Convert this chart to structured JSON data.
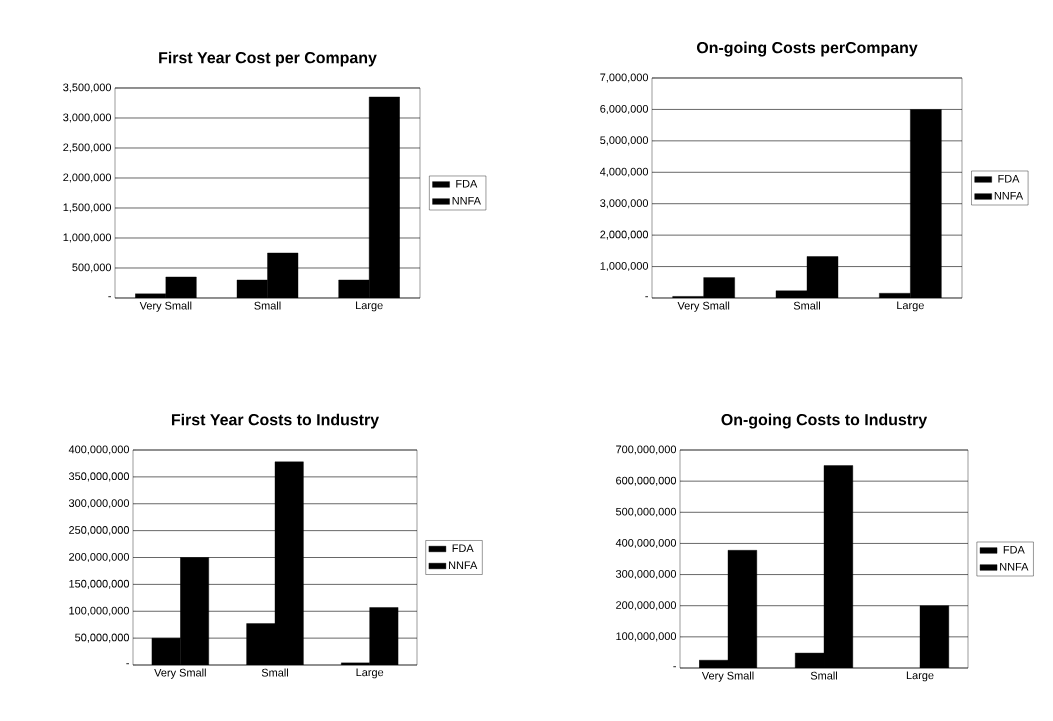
{
  "chart_data": [
    {
      "type": "bar",
      "title": "First Year Cost per Company",
      "categories": [
        "Very Small",
        "Small",
        "Large"
      ],
      "series": [
        {
          "name": "FDA",
          "color": "#000000",
          "values": [
            70000,
            300000,
            300000
          ]
        },
        {
          "name": "NNFA",
          "color": "#000000",
          "values": [
            350000,
            750000,
            3350000
          ]
        }
      ],
      "ylim": [
        0,
        3500000
      ],
      "yticks": [
        {
          "value": 0,
          "label": "-"
        },
        {
          "value": 500000,
          "label": "500,000"
        },
        {
          "value": 1000000,
          "label": "1,000,000"
        },
        {
          "value": 1500000,
          "label": "1,500,000"
        },
        {
          "value": 2000000,
          "label": "2,000,000"
        },
        {
          "value": 2500000,
          "label": "2,500,000"
        },
        {
          "value": 3000000,
          "label": "3,000,000"
        },
        {
          "value": 3500000,
          "label": "3,500,000"
        }
      ],
      "grid": "y",
      "legend": "right"
    },
    {
      "type": "bar",
      "title": "On-going Costs perCompany",
      "categories": [
        "Very Small",
        "Small",
        "Large"
      ],
      "series": [
        {
          "name": "FDA",
          "color": "#000000",
          "values": [
            50000,
            230000,
            150000
          ]
        },
        {
          "name": "NNFA",
          "color": "#000000",
          "values": [
            650000,
            1320000,
            6000000
          ]
        }
      ],
      "ylim": [
        0,
        7000000
      ],
      "yticks": [
        {
          "value": 0,
          "label": "-"
        },
        {
          "value": 1000000,
          "label": "1,000,000"
        },
        {
          "value": 2000000,
          "label": "2,000,000"
        },
        {
          "value": 3000000,
          "label": "3,000,000"
        },
        {
          "value": 4000000,
          "label": "4,000,000"
        },
        {
          "value": 5000000,
          "label": "5,000,000"
        },
        {
          "value": 6000000,
          "label": "6,000,000"
        },
        {
          "value": 7000000,
          "label": "7,000,000"
        }
      ],
      "grid": "y",
      "legend": "right"
    },
    {
      "type": "bar",
      "title": "First Year Costs to Industry",
      "categories": [
        "Very Small",
        "Small",
        "Large"
      ],
      "series": [
        {
          "name": "FDA",
          "color": "#000000",
          "values": [
            50000000,
            77000000,
            4000000
          ]
        },
        {
          "name": "NNFA",
          "color": "#000000",
          "values": [
            200000000,
            378000000,
            107000000
          ]
        }
      ],
      "ylim": [
        0,
        400000000
      ],
      "yticks": [
        {
          "value": 0,
          "label": "-"
        },
        {
          "value": 50000000,
          "label": "50,000,000"
        },
        {
          "value": 100000000,
          "label": "100,000,000"
        },
        {
          "value": 150000000,
          "label": "150,000,000"
        },
        {
          "value": 200000000,
          "label": "200,000,000"
        },
        {
          "value": 250000000,
          "label": "250,000,000"
        },
        {
          "value": 300000000,
          "label": "300,000,000"
        },
        {
          "value": 350000000,
          "label": "350,000,000"
        },
        {
          "value": 400000000,
          "label": "400,000,000"
        }
      ],
      "grid": "y",
      "legend": "right"
    },
    {
      "type": "bar",
      "title": "On-going Costs to Industry",
      "categories": [
        "Very Small",
        "Small",
        "Large"
      ],
      "series": [
        {
          "name": "FDA",
          "color": "#000000",
          "values": [
            25000000,
            48000000,
            null
          ]
        },
        {
          "name": "NNFA",
          "color": "#000000",
          "values": [
            378000000,
            650000000,
            200000000
          ]
        }
      ],
      "ylim": [
        0,
        700000000
      ],
      "yticks": [
        {
          "value": 0,
          "label": "-"
        },
        {
          "value": 100000000,
          "label": "100,000,000"
        },
        {
          "value": 200000000,
          "label": "200,000,000"
        },
        {
          "value": 300000000,
          "label": "300,000,000"
        },
        {
          "value": 400000000,
          "label": "400,000,000"
        },
        {
          "value": 500000000,
          "label": "500,000,000"
        },
        {
          "value": 600000000,
          "label": "600,000,000"
        },
        {
          "value": 700000000,
          "label": "700,000,000"
        }
      ],
      "grid": "y",
      "legend": "right"
    }
  ]
}
